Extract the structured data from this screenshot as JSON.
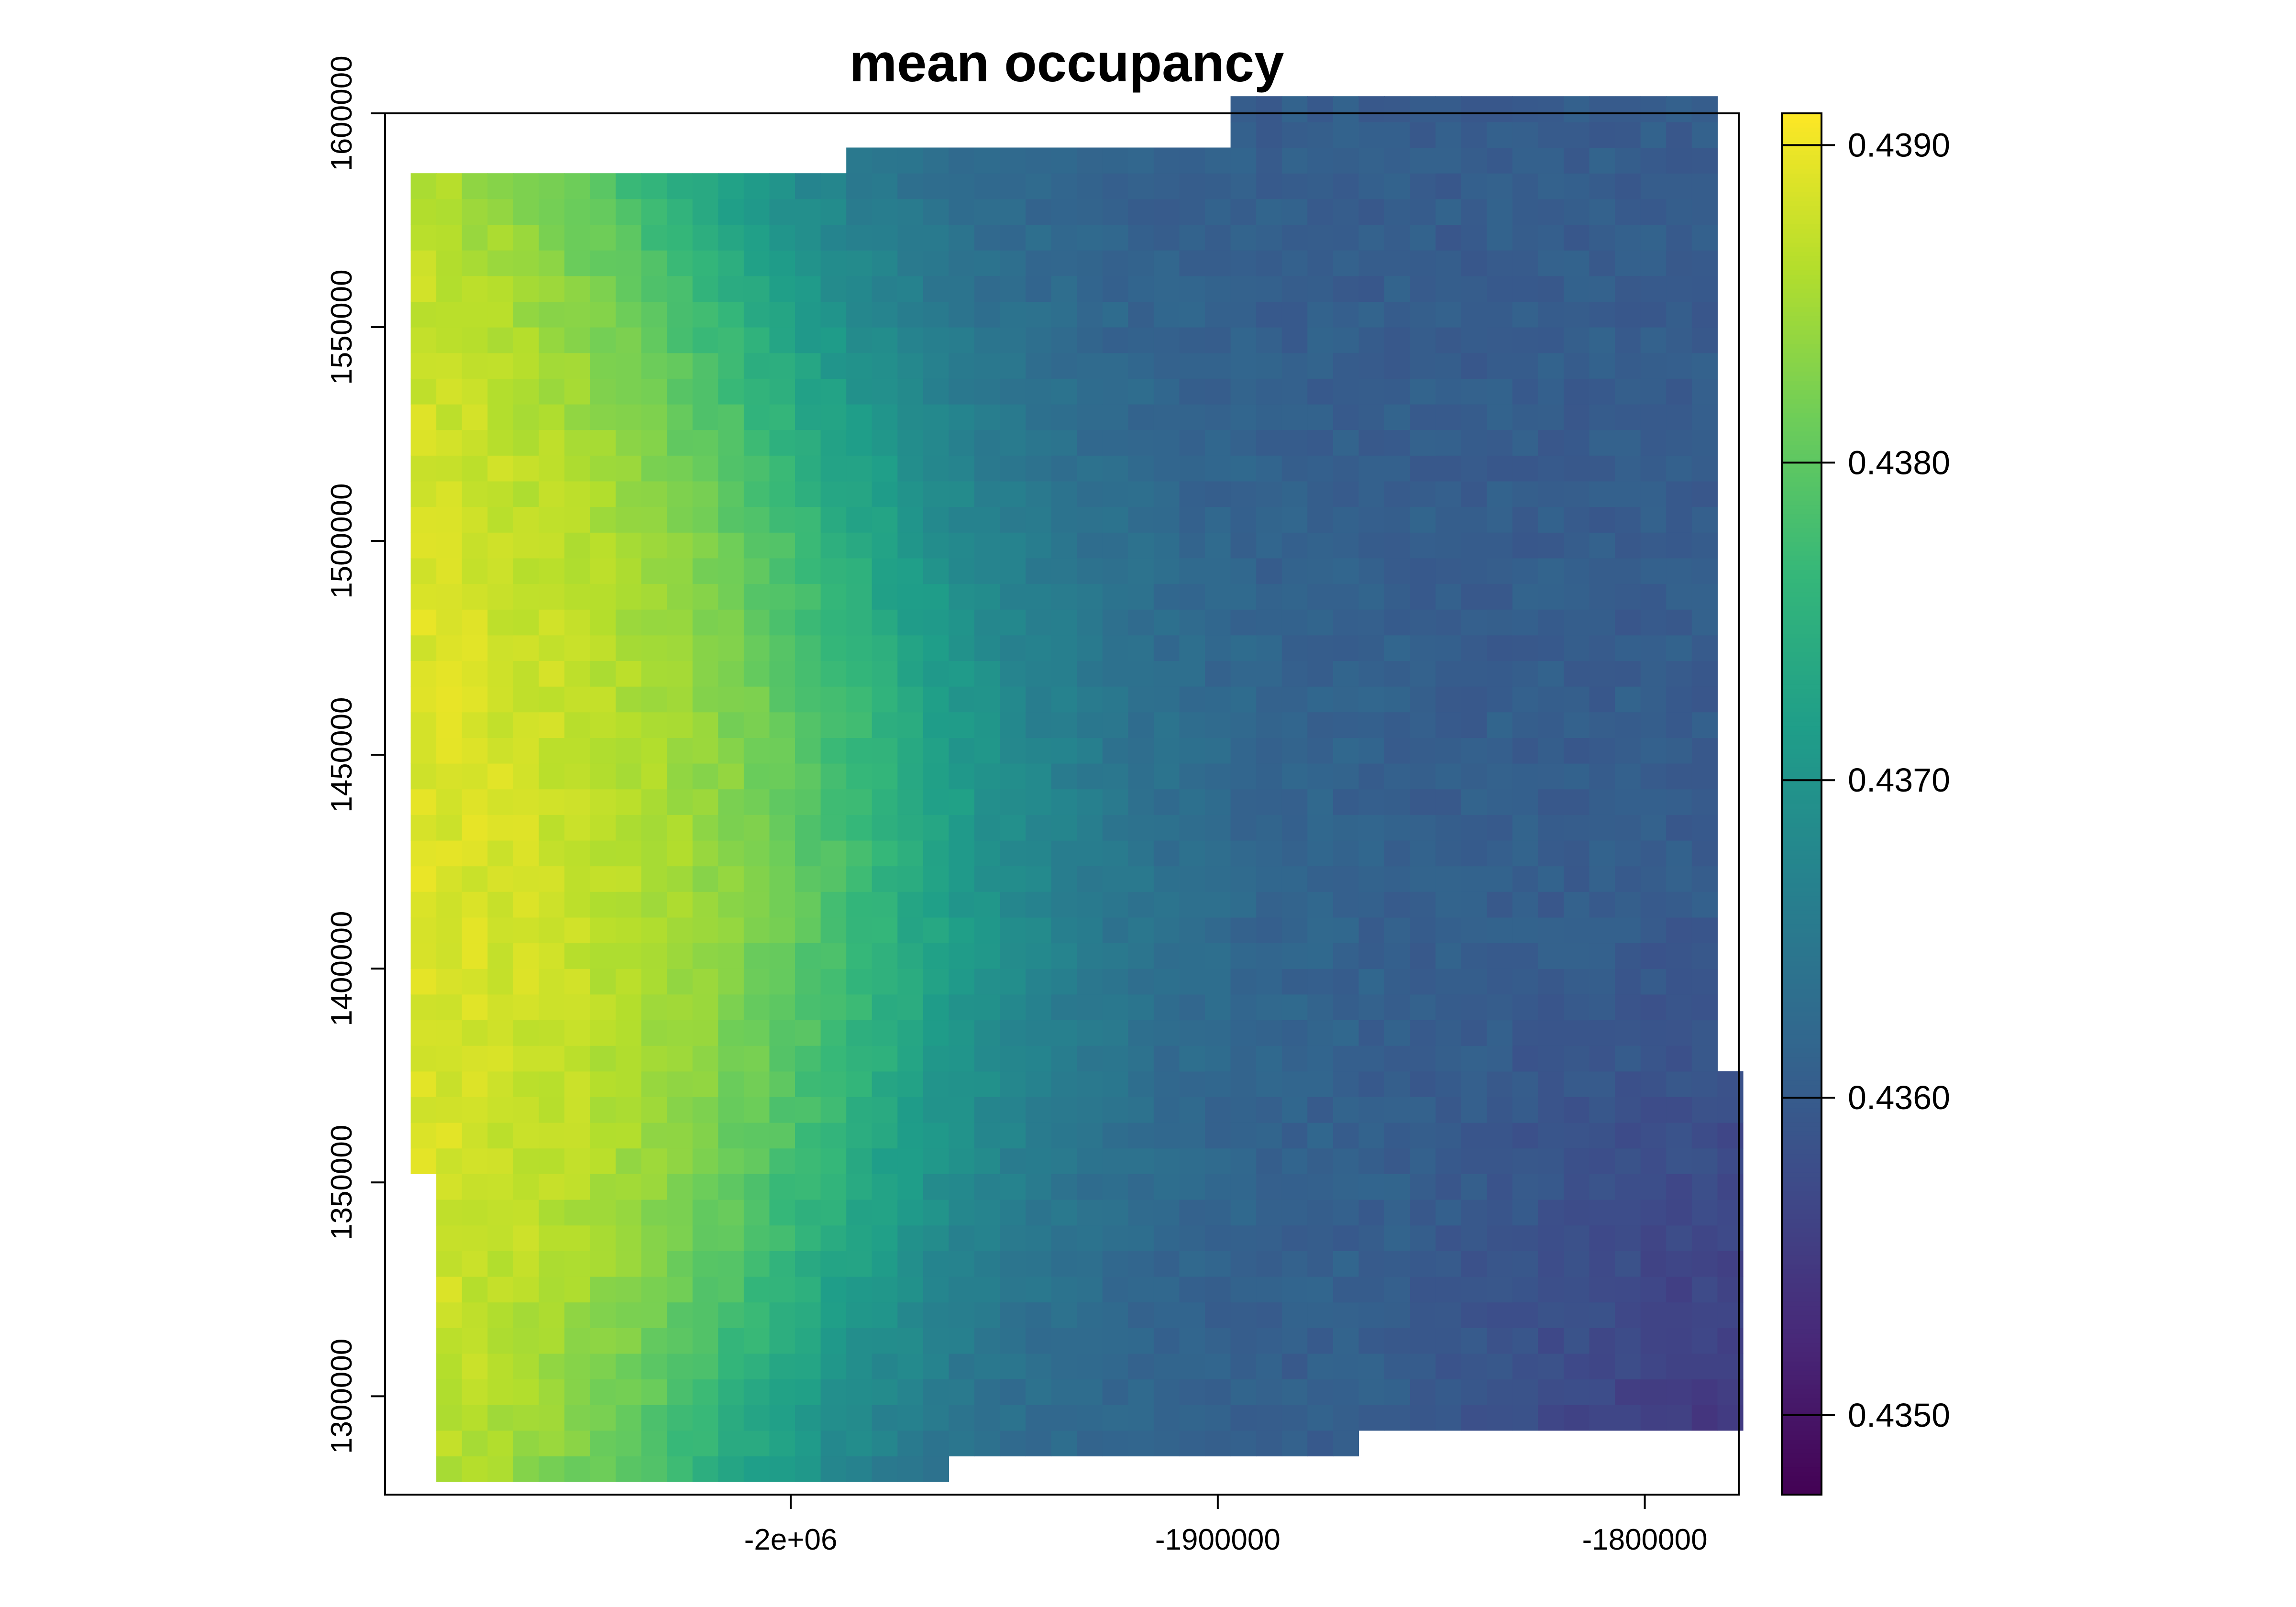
{
  "chart_data": {
    "type": "heatmap",
    "title": "mean occupancy",
    "xlabel": "",
    "ylabel": "",
    "xlim": [
      -2095000,
      -1778000
    ],
    "ylim": [
      1277000,
      1600000
    ],
    "xticks": [
      {
        "value": -2000000,
        "label": "-2e+06"
      },
      {
        "value": -1900000,
        "label": "-1900000"
      },
      {
        "value": -1800000,
        "label": "-1800000"
      }
    ],
    "yticks": [
      {
        "value": 1300000,
        "label": "1300000"
      },
      {
        "value": 1350000,
        "label": "1350000"
      },
      {
        "value": 1400000,
        "label": "1400000"
      },
      {
        "value": 1450000,
        "label": "1450000"
      },
      {
        "value": 1500000,
        "label": "1500000"
      },
      {
        "value": 1550000,
        "label": "1550000"
      },
      {
        "value": 1600000,
        "label": "1600000"
      }
    ],
    "colorbar": {
      "colormap": "viridis",
      "min": 0.43475,
      "max": 0.4391,
      "ticks": [
        "0.4350",
        "0.4360",
        "0.4370",
        "0.4380",
        "0.4390"
      ],
      "tick_values": [
        0.435,
        0.436,
        0.437,
        0.438,
        0.439
      ]
    },
    "raster": {
      "cell_size": 6000,
      "extent_note": "values decrease from west (~0.4390) to east (~0.4352); minimum near south-east corner",
      "west_value": 0.43895,
      "east_value": 0.4355,
      "min_value": 0.43478
    },
    "grid": false,
    "legend": "right"
  }
}
